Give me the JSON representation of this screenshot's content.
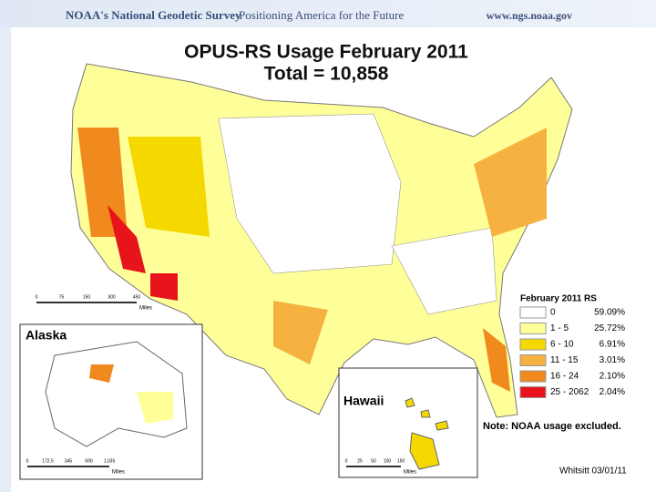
{
  "header": {
    "org": "NOAA's National Geodetic Survey",
    "tagline": "Positioning America for the Future",
    "url": "www.ngs.noaa.gov"
  },
  "title": "OPUS-RS Usage February 2011",
  "total": "Total = 10,858",
  "legend": {
    "title": "February 2011 RS",
    "items": [
      {
        "label": "0",
        "percent": "59.09%",
        "color": "#ffffff"
      },
      {
        "label": "1 - 5",
        "percent": "25.72%",
        "color": "#ffff99"
      },
      {
        "label": "6 - 10",
        "percent": "6.91%",
        "color": "#f5d800"
      },
      {
        "label": "11 - 15",
        "percent": "3.01%",
        "color": "#f5b240"
      },
      {
        "label": "16 - 24",
        "percent": "2.10%",
        "color": "#f08a1e"
      },
      {
        "label": "25 - 2062",
        "percent": "2.04%",
        "color": "#e8141c"
      }
    ]
  },
  "insets": {
    "alaska": "Alaska",
    "hawaii": "Hawaii"
  },
  "scale_bars": {
    "main": {
      "ticks": [
        "0",
        "75",
        "150",
        "300",
        "450"
      ],
      "unit": "Miles"
    },
    "alaska": {
      "ticks": [
        "0",
        "172.5",
        "345",
        "690",
        "1,035"
      ],
      "unit": "Miles"
    },
    "hawaii": {
      "ticks": [
        "0",
        "25",
        "50",
        "100",
        "150"
      ],
      "unit": "Miles"
    }
  },
  "note": "Note: NOAA usage excluded.",
  "credit": "Whitsitt 03/01/11"
}
